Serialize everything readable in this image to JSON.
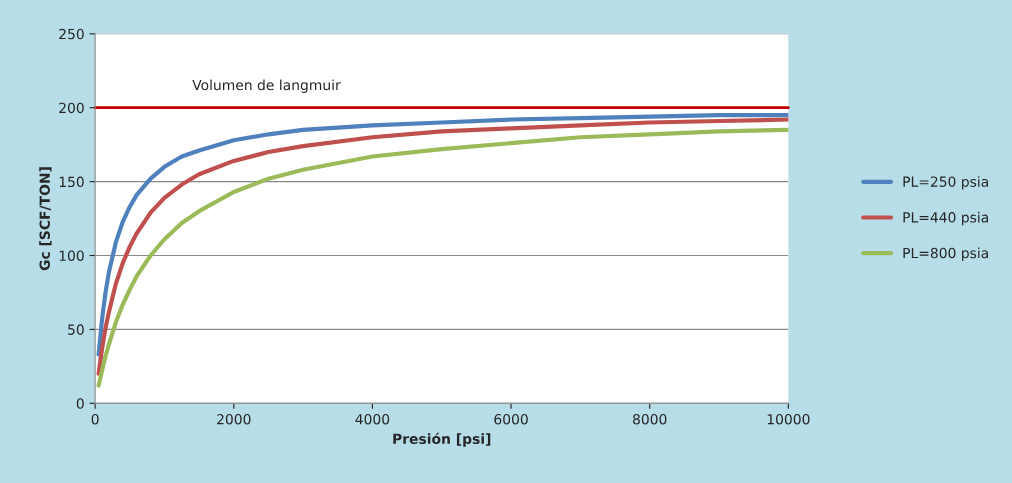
{
  "chart_data": {
    "type": "line",
    "xlabel": "Presión [psi]",
    "ylabel": "Gc [SCF/TON]",
    "x": [
      50,
      100,
      150,
      200,
      300,
      400,
      500,
      600,
      800,
      1000,
      1250,
      1500,
      2000,
      2500,
      3000,
      4000,
      5000,
      6000,
      7000,
      8000,
      9000,
      10000
    ],
    "series": [
      {
        "name": "PL=250 psia",
        "color": "#4f81bd",
        "values": [
          33,
          57,
          75,
          89,
          109,
          123,
          133,
          141,
          152,
          160,
          167,
          171,
          178,
          182,
          185,
          188,
          190,
          192,
          193,
          194,
          195,
          195
        ]
      },
      {
        "name": "PL=440 psia",
        "color": "#c0504d",
        "values": [
          20,
          37,
          51,
          62,
          81,
          95,
          106,
          115,
          129,
          139,
          148,
          155,
          164,
          170,
          174,
          180,
          184,
          186,
          188,
          190,
          191,
          192
        ]
      },
      {
        "name": "PL=800 psia",
        "color": "#9bbb59",
        "values": [
          12,
          22,
          32,
          40,
          55,
          67,
          77,
          86,
          100,
          111,
          122,
          130,
          143,
          152,
          158,
          167,
          172,
          176,
          180,
          182,
          184,
          185
        ]
      }
    ],
    "xlim": [
      0,
      10000
    ],
    "xticks": [
      0,
      2000,
      4000,
      6000,
      8000,
      10000
    ],
    "ylim": [
      0,
      250
    ],
    "yticks": [
      0,
      50,
      100,
      150,
      200,
      250
    ],
    "ref_lines": [
      {
        "axis": "y",
        "value": 200,
        "label": "Volumen de langmuir",
        "color": "#c00000"
      }
    ],
    "grid": "y",
    "legend": "right",
    "marker": "none",
    "line_style": "solid"
  }
}
